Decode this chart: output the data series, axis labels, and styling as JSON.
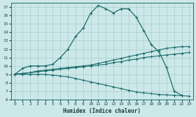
{
  "xlabel": "Humidex (Indice chaleur)",
  "bg_color": "#cce8e8",
  "line_color": "#1a6b6b",
  "grid_color": "#aacccc",
  "xlim": [
    -0.5,
    23.5
  ],
  "ylim": [
    6,
    17.5
  ],
  "yticks": [
    6,
    7,
    8,
    9,
    10,
    11,
    12,
    13,
    14,
    15,
    16,
    17
  ],
  "xticks": [
    0,
    1,
    2,
    3,
    4,
    5,
    6,
    7,
    8,
    9,
    10,
    11,
    12,
    13,
    14,
    15,
    16,
    17,
    18,
    19,
    20,
    21,
    22,
    23
  ],
  "curve1_x": [
    0,
    1,
    2,
    3,
    4,
    5,
    6,
    7,
    8,
    9,
    10,
    11,
    12,
    13,
    14,
    15,
    16,
    17,
    18,
    19,
    20,
    21,
    22
  ],
  "curve1_y": [
    9.0,
    9.7,
    10.0,
    10.0,
    10.0,
    10.2,
    11.0,
    12.0,
    13.5,
    14.5,
    16.3,
    17.2,
    16.8,
    16.3,
    16.8,
    16.8,
    15.8,
    14.2,
    12.5,
    11.7,
    9.8,
    7.0,
    6.5
  ],
  "curve2_x": [
    0,
    1,
    2,
    3,
    4,
    5,
    6,
    7,
    8,
    9,
    10,
    11,
    12,
    13,
    14,
    15,
    16,
    17,
    18,
    19,
    20,
    21,
    22,
    23
  ],
  "curve2_y": [
    9.0,
    9.1,
    9.2,
    9.4,
    9.5,
    9.6,
    9.7,
    9.8,
    9.9,
    10.0,
    10.1,
    10.3,
    10.5,
    10.7,
    10.9,
    11.1,
    11.3,
    11.5,
    11.7,
    11.9,
    12.1,
    12.2,
    12.3,
    12.3
  ],
  "curve3_x": [
    0,
    1,
    2,
    3,
    4,
    5,
    6,
    7,
    8,
    9,
    10,
    11,
    12,
    13,
    14,
    15,
    16,
    17,
    18,
    19,
    20,
    21,
    22,
    23
  ],
  "curve3_y": [
    9.0,
    9.1,
    9.2,
    9.3,
    9.4,
    9.5,
    9.6,
    9.7,
    9.8,
    9.9,
    10.0,
    10.1,
    10.2,
    10.4,
    10.5,
    10.7,
    10.8,
    11.0,
    11.1,
    11.2,
    11.3,
    11.4,
    11.5,
    11.6
  ],
  "curve4_x": [
    0,
    1,
    2,
    3,
    4,
    5,
    6,
    7,
    8,
    9,
    10,
    11,
    12,
    13,
    14,
    15,
    16,
    17,
    18,
    19,
    20,
    21,
    22,
    23
  ],
  "curve4_y": [
    9.0,
    9.0,
    9.0,
    9.0,
    9.0,
    8.9,
    8.8,
    8.7,
    8.5,
    8.3,
    8.1,
    7.9,
    7.7,
    7.5,
    7.3,
    7.1,
    6.9,
    6.8,
    6.7,
    6.6,
    6.55,
    6.5,
    6.45,
    6.4
  ]
}
